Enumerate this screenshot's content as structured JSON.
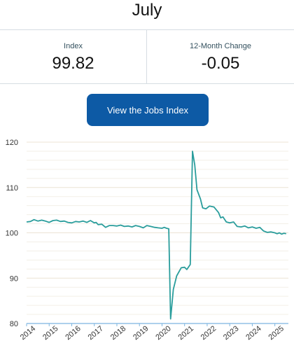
{
  "header": {
    "month": "July"
  },
  "stats": {
    "index_label": "Index",
    "index_value": "99.82",
    "change_label": "12-Month Change",
    "change_value": "-0.05"
  },
  "button": {
    "label": "View the Jobs Index"
  },
  "colors": {
    "line": "#2a9d9c",
    "button": "#0d5aa5",
    "grid": "#f0e4cf",
    "axis": "#7cb5e0"
  },
  "chart_data": {
    "type": "line",
    "title": "",
    "xlabel": "",
    "ylabel": "",
    "xlim": [
      2014.0,
      2025.6
    ],
    "ylim": [
      80,
      120
    ],
    "y_ticks": [
      80,
      90,
      100,
      110,
      120
    ],
    "x_tick_labels": [
      "2014",
      "2015",
      "2016",
      "2017",
      "2018",
      "2019",
      "2020",
      "2021",
      "2022",
      "2023",
      "2024",
      "2025"
    ],
    "grid": true,
    "series": [
      {
        "points": [
          [
            2014.0,
            102.4
          ],
          [
            2014.17,
            102.5
          ],
          [
            2014.33,
            102.9
          ],
          [
            2014.5,
            102.6
          ],
          [
            2014.67,
            102.8
          ],
          [
            2014.83,
            102.6
          ],
          [
            2015.0,
            102.3
          ],
          [
            2015.17,
            102.7
          ],
          [
            2015.33,
            102.8
          ],
          [
            2015.5,
            102.5
          ],
          [
            2015.67,
            102.6
          ],
          [
            2015.83,
            102.3
          ],
          [
            2016.0,
            102.2
          ],
          [
            2016.17,
            102.5
          ],
          [
            2016.33,
            102.4
          ],
          [
            2016.5,
            102.6
          ],
          [
            2016.67,
            102.3
          ],
          [
            2016.83,
            102.7
          ],
          [
            2017.0,
            102.2
          ],
          [
            2017.08,
            102.3
          ],
          [
            2017.17,
            101.8
          ],
          [
            2017.33,
            101.9
          ],
          [
            2017.5,
            101.2
          ],
          [
            2017.67,
            101.6
          ],
          [
            2017.83,
            101.6
          ],
          [
            2018.0,
            101.5
          ],
          [
            2018.17,
            101.7
          ],
          [
            2018.33,
            101.4
          ],
          [
            2018.5,
            101.5
          ],
          [
            2018.67,
            101.3
          ],
          [
            2018.83,
            101.6
          ],
          [
            2019.0,
            101.4
          ],
          [
            2019.17,
            101.1
          ],
          [
            2019.33,
            101.6
          ],
          [
            2019.5,
            101.4
          ],
          [
            2019.67,
            101.2
          ],
          [
            2019.83,
            101.1
          ],
          [
            2020.0,
            101.0
          ],
          [
            2020.1,
            101.2
          ],
          [
            2020.2,
            101.0
          ],
          [
            2020.3,
            100.9
          ],
          [
            2020.38,
            81.0
          ],
          [
            2020.5,
            87.5
          ],
          [
            2020.65,
            90.5
          ],
          [
            2020.85,
            92.3
          ],
          [
            2021.0,
            92.4
          ],
          [
            2021.1,
            91.9
          ],
          [
            2021.25,
            93.0
          ],
          [
            2021.35,
            118.0
          ],
          [
            2021.45,
            115.0
          ],
          [
            2021.55,
            109.5
          ],
          [
            2021.7,
            107.5
          ],
          [
            2021.8,
            105.5
          ],
          [
            2021.95,
            105.3
          ],
          [
            2022.1,
            105.9
          ],
          [
            2022.3,
            105.7
          ],
          [
            2022.5,
            104.5
          ],
          [
            2022.6,
            103.3
          ],
          [
            2022.7,
            103.5
          ],
          [
            2022.85,
            102.4
          ],
          [
            2023.0,
            102.2
          ],
          [
            2023.17,
            102.4
          ],
          [
            2023.33,
            101.4
          ],
          [
            2023.5,
            101.3
          ],
          [
            2023.67,
            101.5
          ],
          [
            2023.83,
            101.1
          ],
          [
            2024.0,
            101.3
          ],
          [
            2024.17,
            101.0
          ],
          [
            2024.33,
            101.2
          ],
          [
            2024.5,
            100.4
          ],
          [
            2024.67,
            100.1
          ],
          [
            2024.83,
            100.2
          ],
          [
            2025.0,
            100.0
          ],
          [
            2025.1,
            99.8
          ],
          [
            2025.2,
            100.0
          ],
          [
            2025.3,
            99.7
          ],
          [
            2025.4,
            99.9
          ],
          [
            2025.5,
            99.8
          ]
        ]
      }
    ]
  }
}
